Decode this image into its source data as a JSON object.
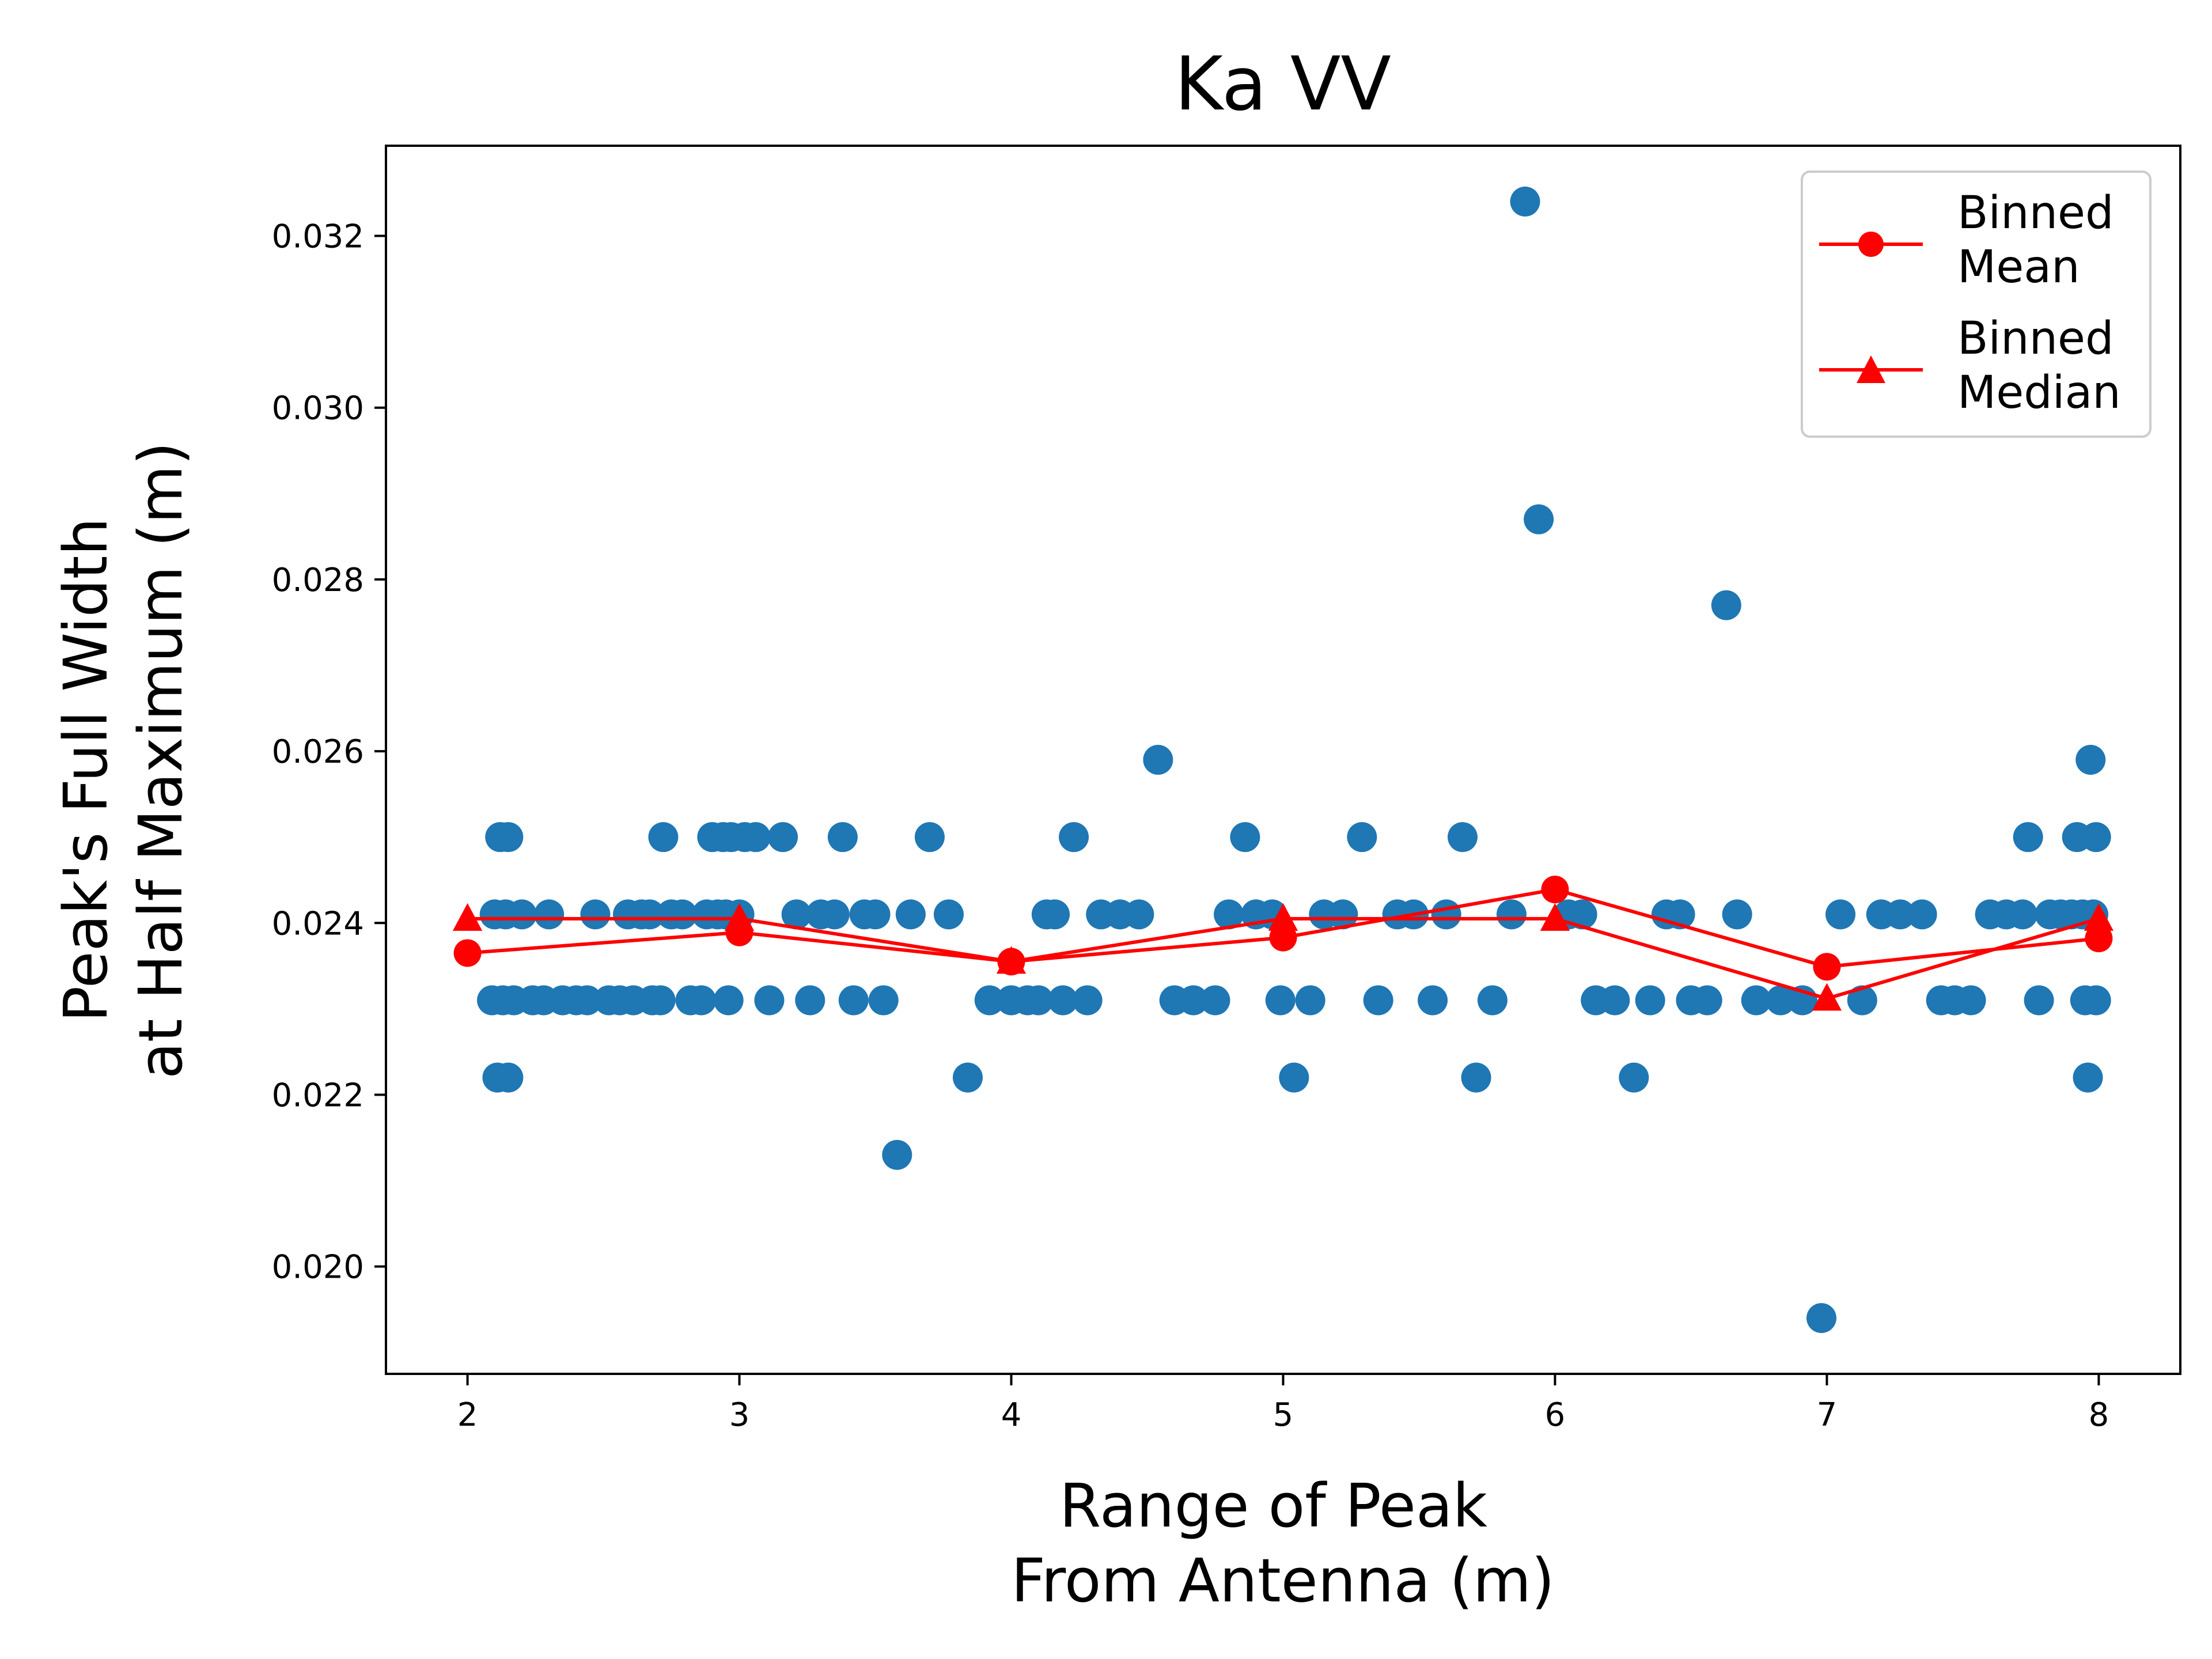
{
  "chart_data": {
    "type": "scatter",
    "title": "Ka VV",
    "xlabel": [
      "Range of Peak",
      "From Antenna (m)"
    ],
    "ylabel": [
      "Peak's Full Width",
      "at Half Maximum (m)"
    ],
    "xlim": [
      1.7,
      8.3
    ],
    "ylim": [
      0.01875,
      0.03305
    ],
    "xticks": [
      2,
      3,
      4,
      5,
      6,
      7,
      8
    ],
    "xtick_labels": [
      "2",
      "3",
      "4",
      "5",
      "6",
      "7",
      "8"
    ],
    "yticks": [
      0.02,
      0.022,
      0.024,
      0.026,
      0.028,
      0.03,
      0.032
    ],
    "ytick_labels": [
      "0.020",
      "0.022",
      "0.024",
      "0.026",
      "0.028",
      "0.030",
      "0.032"
    ],
    "grid": false,
    "legend_position": "top-right",
    "colors": {
      "scatter": "#1f77b4",
      "binned": "#ff0000",
      "axes": "#000000",
      "legend_border": "#cccccc"
    },
    "series": [
      {
        "kind": "scatter",
        "points": [
          [
            2.09,
            0.0231
          ],
          [
            2.1,
            0.0241
          ],
          [
            2.11,
            0.0222
          ],
          [
            2.12,
            0.025
          ],
          [
            2.13,
            0.0231
          ],
          [
            2.14,
            0.0241
          ],
          [
            2.15,
            0.0222
          ],
          [
            2.15,
            0.025
          ],
          [
            2.17,
            0.0231
          ],
          [
            2.2,
            0.0241
          ],
          [
            2.24,
            0.0231
          ],
          [
            2.28,
            0.0231
          ],
          [
            2.3,
            0.0241
          ],
          [
            2.35,
            0.0231
          ],
          [
            2.4,
            0.0231
          ],
          [
            2.44,
            0.0231
          ],
          [
            2.47,
            0.0241
          ],
          [
            2.52,
            0.0231
          ],
          [
            2.56,
            0.0231
          ],
          [
            2.59,
            0.0241
          ],
          [
            2.61,
            0.0231
          ],
          [
            2.64,
            0.0241
          ],
          [
            2.67,
            0.0241
          ],
          [
            2.68,
            0.0231
          ],
          [
            2.71,
            0.0231
          ],
          [
            2.72,
            0.025
          ],
          [
            2.75,
            0.0241
          ],
          [
            2.79,
            0.0241
          ],
          [
            2.82,
            0.0231
          ],
          [
            2.86,
            0.0231
          ],
          [
            2.88,
            0.0241
          ],
          [
            2.9,
            0.025
          ],
          [
            2.92,
            0.0241
          ],
          [
            2.94,
            0.025
          ],
          [
            2.95,
            0.0241
          ],
          [
            2.96,
            0.0231
          ],
          [
            2.97,
            0.025
          ],
          [
            3.0,
            0.0241
          ],
          [
            3.02,
            0.025
          ],
          [
            3.06,
            0.025
          ],
          [
            3.11,
            0.0231
          ],
          [
            3.16,
            0.025
          ],
          [
            3.21,
            0.0241
          ],
          [
            3.26,
            0.0231
          ],
          [
            3.3,
            0.0241
          ],
          [
            3.35,
            0.0241
          ],
          [
            3.38,
            0.025
          ],
          [
            3.42,
            0.0231
          ],
          [
            3.46,
            0.0241
          ],
          [
            3.5,
            0.0241
          ],
          [
            3.53,
            0.0231
          ],
          [
            3.58,
            0.0213
          ],
          [
            3.63,
            0.0241
          ],
          [
            3.7,
            0.025
          ],
          [
            3.77,
            0.0241
          ],
          [
            3.84,
            0.0222
          ],
          [
            3.92,
            0.0231
          ],
          [
            4.0,
            0.0231
          ],
          [
            4.06,
            0.0231
          ],
          [
            4.1,
            0.0231
          ],
          [
            4.13,
            0.0241
          ],
          [
            4.16,
            0.0241
          ],
          [
            4.19,
            0.0231
          ],
          [
            4.23,
            0.025
          ],
          [
            4.28,
            0.0231
          ],
          [
            4.33,
            0.0241
          ],
          [
            4.4,
            0.0241
          ],
          [
            4.47,
            0.0241
          ],
          [
            4.54,
            0.0259
          ],
          [
            4.6,
            0.0231
          ],
          [
            4.67,
            0.0231
          ],
          [
            4.75,
            0.0231
          ],
          [
            4.8,
            0.0241
          ],
          [
            4.86,
            0.025
          ],
          [
            4.9,
            0.0241
          ],
          [
            4.96,
            0.0241
          ],
          [
            4.99,
            0.0231
          ],
          [
            5.04,
            0.0222
          ],
          [
            5.1,
            0.0231
          ],
          [
            5.15,
            0.0241
          ],
          [
            5.22,
            0.0241
          ],
          [
            5.29,
            0.025
          ],
          [
            5.35,
            0.0231
          ],
          [
            5.42,
            0.0241
          ],
          [
            5.48,
            0.0241
          ],
          [
            5.55,
            0.0231
          ],
          [
            5.6,
            0.0241
          ],
          [
            5.66,
            0.025
          ],
          [
            5.71,
            0.0222
          ],
          [
            5.77,
            0.0231
          ],
          [
            5.84,
            0.0241
          ],
          [
            5.89,
            0.0324
          ],
          [
            5.94,
            0.0287
          ],
          [
            6.05,
            0.0241
          ],
          [
            6.1,
            0.0241
          ],
          [
            6.15,
            0.0231
          ],
          [
            6.22,
            0.0231
          ],
          [
            6.29,
            0.0222
          ],
          [
            6.35,
            0.0231
          ],
          [
            6.41,
            0.0241
          ],
          [
            6.46,
            0.0241
          ],
          [
            6.5,
            0.0231
          ],
          [
            6.56,
            0.0231
          ],
          [
            6.63,
            0.0277
          ],
          [
            6.67,
            0.0241
          ],
          [
            6.74,
            0.0231
          ],
          [
            6.83,
            0.0231
          ],
          [
            6.91,
            0.0231
          ],
          [
            6.98,
            0.0194
          ],
          [
            7.05,
            0.0241
          ],
          [
            7.13,
            0.0231
          ],
          [
            7.2,
            0.0241
          ],
          [
            7.27,
            0.0241
          ],
          [
            7.35,
            0.0241
          ],
          [
            7.42,
            0.0231
          ],
          [
            7.47,
            0.0231
          ],
          [
            7.53,
            0.0231
          ],
          [
            7.6,
            0.0241
          ],
          [
            7.66,
            0.0241
          ],
          [
            7.72,
            0.0241
          ],
          [
            7.74,
            0.025
          ],
          [
            7.78,
            0.0231
          ],
          [
            7.82,
            0.0241
          ],
          [
            7.86,
            0.0241
          ],
          [
            7.9,
            0.0241
          ],
          [
            7.92,
            0.025
          ],
          [
            7.94,
            0.0241
          ],
          [
            7.95,
            0.0231
          ],
          [
            7.96,
            0.0222
          ],
          [
            7.97,
            0.0259
          ],
          [
            7.98,
            0.0241
          ],
          [
            7.99,
            0.0231
          ],
          [
            7.99,
            0.025
          ]
        ]
      },
      {
        "kind": "line",
        "marker": "circle",
        "name": "Binned\nMean",
        "x": [
          2,
          3,
          4,
          5,
          6,
          7,
          8
        ],
        "y": [
          0.02365,
          0.02389,
          0.02355,
          0.02383,
          0.02439,
          0.02349,
          0.02382
        ]
      },
      {
        "kind": "line",
        "marker": "triangle",
        "name": "Binned\nMedian",
        "x": [
          2,
          3,
          4,
          5,
          6,
          7,
          8
        ],
        "y": [
          0.02405,
          0.02405,
          0.02355,
          0.02405,
          0.02405,
          0.02312,
          0.02405
        ]
      }
    ]
  }
}
